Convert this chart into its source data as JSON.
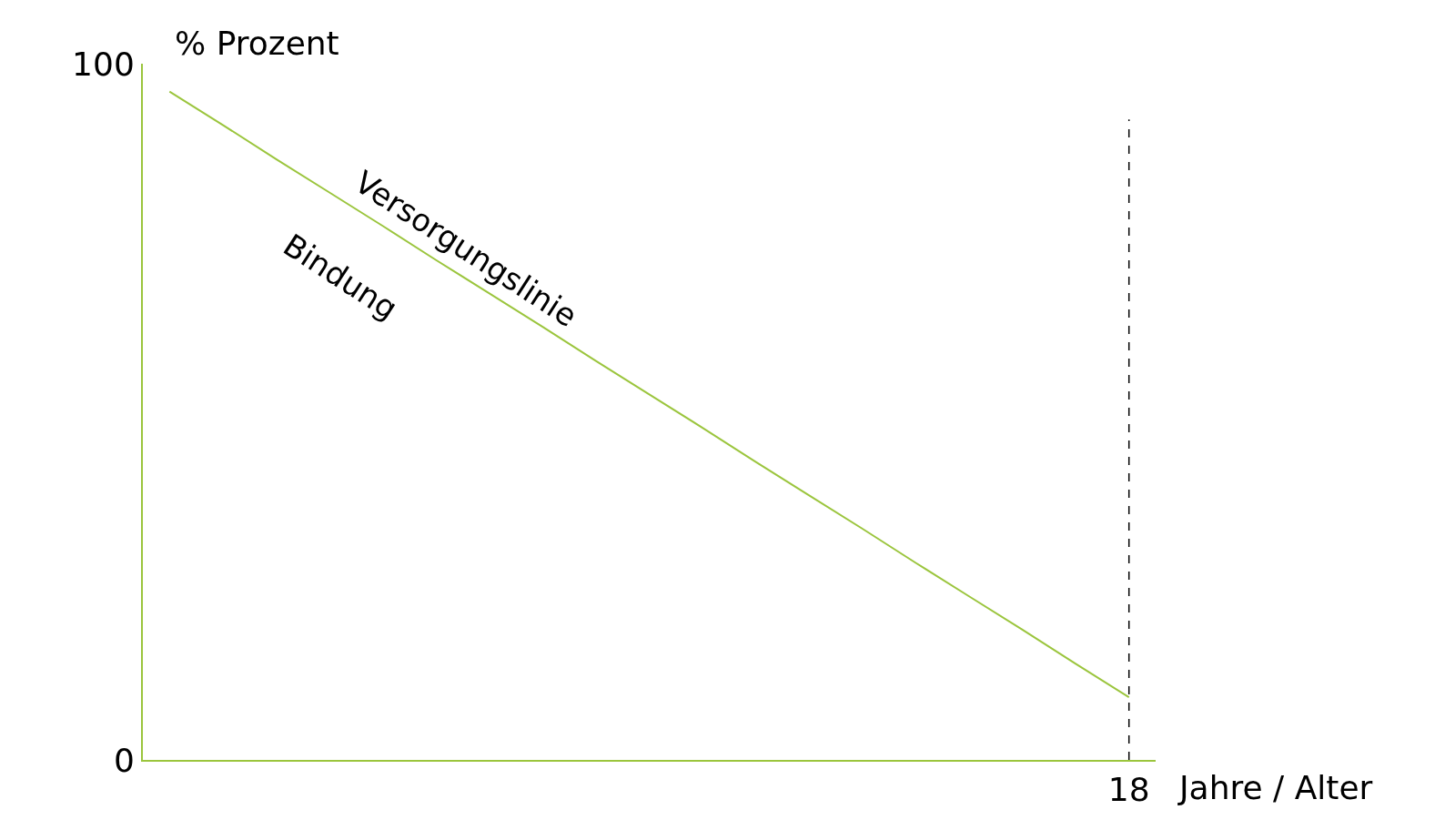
{
  "chart_data": {
    "type": "line",
    "categories": [
      null,
      null,
      null,
      null,
      null,
      null,
      null,
      null,
      null,
      null,
      null,
      null,
      null,
      null,
      null,
      null,
      null,
      null,
      "18"
    ],
    "values": [
      96,
      91.2,
      86.3,
      81.5,
      76.7,
      71.8,
      67,
      62.2,
      57.3,
      52.5,
      47.7,
      42.8,
      38,
      33.2,
      28.3,
      23.5,
      18.7,
      13.8,
      9
    ],
    "color": "#9bc53d",
    "ylim": [
      0,
      100
    ],
    "yticks": [
      0,
      100
    ],
    "xlabel": "Jahre / Alter",
    "ylabel": "% Prozent",
    "legend": false,
    "marker": "none",
    "line_style": "solid",
    "ref_lines": [
      {
        "axis": "x",
        "value": "18",
        "color": "#000000",
        "line_style": "dashed"
      }
    ],
    "annotations": [
      "Versorgungslinie",
      "Bindung"
    ]
  }
}
